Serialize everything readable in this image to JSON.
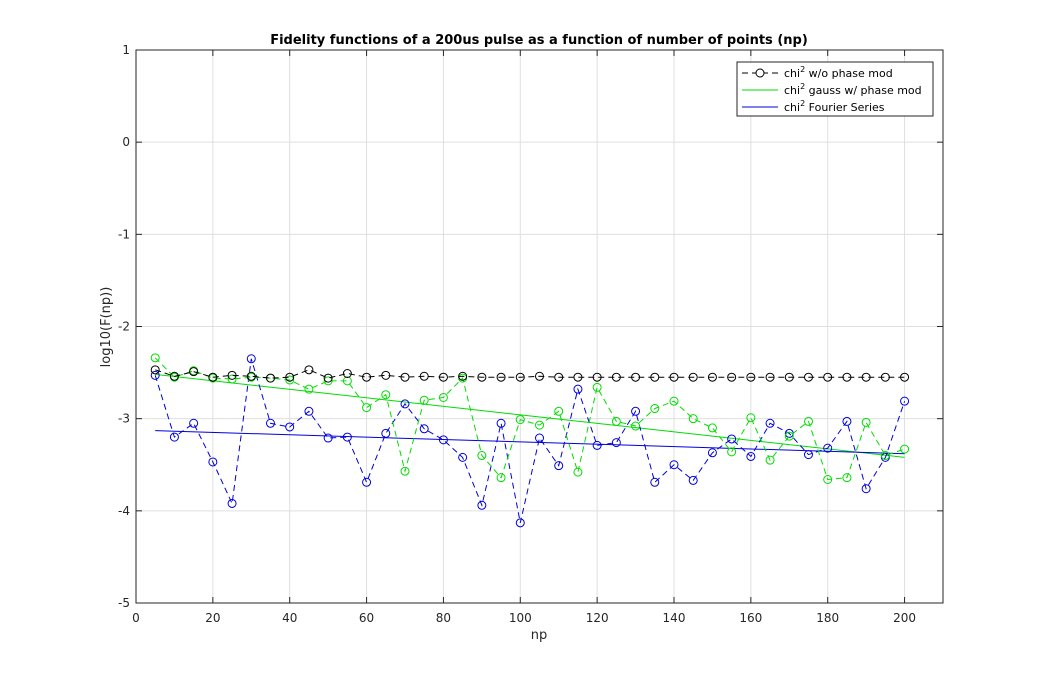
{
  "chart_data": {
    "type": "line",
    "title": "Fidelity functions of a 200us pulse as a function of number of points (np)",
    "xlabel": "np",
    "ylabel": "log10(F(np))",
    "xlim": [
      0,
      210
    ],
    "ylim": [
      -5,
      1
    ],
    "xticks": [
      0,
      20,
      40,
      60,
      80,
      100,
      120,
      140,
      160,
      180,
      200
    ],
    "yticks": [
      -5,
      -4,
      -3,
      -2,
      -1,
      0,
      1
    ],
    "grid": true,
    "legend_position": "top-right",
    "x": [
      5,
      10,
      15,
      20,
      25,
      30,
      35,
      40,
      45,
      50,
      55,
      60,
      65,
      70,
      75,
      80,
      85,
      90,
      95,
      100,
      105,
      110,
      115,
      120,
      125,
      130,
      135,
      140,
      145,
      150,
      155,
      160,
      165,
      170,
      175,
      180,
      185,
      190,
      195,
      200
    ],
    "series": [
      {
        "name": "chi² w/o phase mod",
        "legend_base": "chi",
        "legend_sup": "2",
        "legend_rest": " w/o phase mod",
        "color": "#000000",
        "style": "dashed-circles",
        "values": [
          -2.47,
          -2.54,
          -2.49,
          -2.55,
          -2.53,
          -2.54,
          -2.56,
          -2.55,
          -2.47,
          -2.56,
          -2.51,
          -2.55,
          -2.53,
          -2.55,
          -2.54,
          -2.55,
          -2.54,
          -2.55,
          -2.55,
          -2.55,
          -2.54,
          -2.55,
          -2.55,
          -2.55,
          -2.55,
          -2.55,
          -2.55,
          -2.55,
          -2.55,
          -2.55,
          -2.55,
          -2.55,
          -2.55,
          -2.55,
          -2.55,
          -2.55,
          -2.55,
          -2.55,
          -2.55,
          -2.55
        ]
      },
      {
        "name": "chi² gauss w/ phase mod",
        "legend_base": "chi",
        "legend_sup": "2",
        "legend_rest": " gauss w/ phase mod",
        "color": "#00dd00",
        "style": "dashed-circles",
        "values": [
          -2.34,
          -2.55,
          -2.48,
          -2.56,
          -2.57,
          -2.55,
          -2.56,
          -2.58,
          -2.68,
          -2.59,
          -2.59,
          -2.88,
          -2.74,
          -3.57,
          -2.8,
          -2.77,
          -2.56,
          -3.4,
          -3.64,
          -3.01,
          -3.07,
          -2.92,
          -3.58,
          -2.66,
          -3.03,
          -3.08,
          -2.89,
          -2.81,
          -3.0,
          -3.1,
          -3.36,
          -2.99,
          -3.45,
          -3.19,
          -3.03,
          -3.66,
          -3.64,
          -3.04,
          -3.4,
          -3.33
        ]
      },
      {
        "name": "chi² Fourier Series",
        "legend_base": "chi",
        "legend_sup": "2",
        "legend_rest": " Fourier Series",
        "color": "#0000dd",
        "style": "dashed-circles",
        "values": [
          -2.53,
          -3.2,
          -3.05,
          -3.47,
          -3.92,
          -2.35,
          -3.05,
          -3.09,
          -2.92,
          -3.21,
          -3.2,
          -3.69,
          -3.16,
          -2.84,
          -3.11,
          -3.23,
          -3.42,
          -3.94,
          -3.05,
          -4.13,
          -3.21,
          -3.51,
          -2.68,
          -3.29,
          -3.26,
          -2.92,
          -3.69,
          -3.5,
          -3.67,
          -3.37,
          -3.22,
          -3.41,
          -3.05,
          -3.16,
          -3.39,
          -3.32,
          -3.03,
          -3.76,
          -3.42,
          -2.81
        ]
      }
    ],
    "fit_lines": [
      {
        "series": "chi² gauss w/ phase mod",
        "color": "#00dd00",
        "x": [
          5,
          200
        ],
        "y": [
          -2.52,
          -3.42
        ]
      },
      {
        "series": "chi² Fourier Series",
        "color": "#0000dd",
        "x": [
          5,
          200
        ],
        "y": [
          -3.13,
          -3.38
        ]
      }
    ]
  }
}
